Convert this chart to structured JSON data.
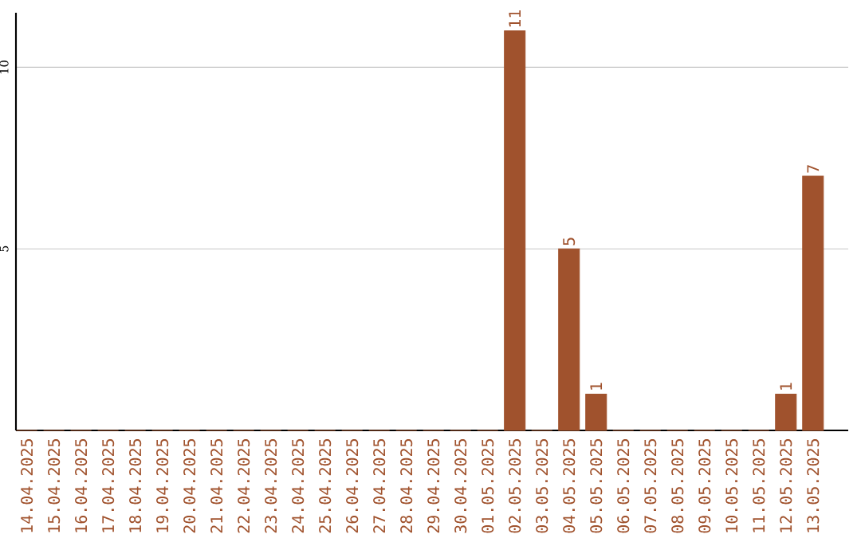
{
  "chart_data": {
    "type": "bar",
    "categories": [
      "14.04.2025",
      "15.04.2025",
      "16.04.2025",
      "17.04.2025",
      "18.04.2025",
      "19.04.2025",
      "20.04.2025",
      "21.04.2025",
      "22.04.2025",
      "23.04.2025",
      "24.04.2025",
      "25.04.2025",
      "26.04.2025",
      "27.04.2025",
      "28.04.2025",
      "29.04.2025",
      "30.04.2025",
      "01.05.2025",
      "02.05.2025",
      "03.05.2025",
      "04.05.2025",
      "05.05.2025",
      "06.05.2025",
      "07.05.2025",
      "08.05.2025",
      "09.05.2025",
      "10.05.2025",
      "11.05.2025",
      "12.05.2025",
      "13.05.2025"
    ],
    "values": [
      0,
      0,
      0,
      0,
      0,
      0,
      0,
      0,
      0,
      0,
      0,
      0,
      0,
      0,
      0,
      0,
      0,
      0,
      11,
      0,
      5,
      1,
      0,
      0,
      0,
      0,
      0,
      0,
      1,
      7
    ],
    "value_labels": [
      null,
      null,
      null,
      null,
      null,
      null,
      null,
      null,
      null,
      null,
      null,
      null,
      null,
      null,
      null,
      null,
      null,
      null,
      "11",
      null,
      "5",
      "1",
      null,
      null,
      null,
      null,
      null,
      null,
      "1",
      "7"
    ],
    "color": "#a0522d",
    "ylim": [
      0,
      11.5
    ],
    "yticks": [
      5,
      10
    ],
    "grid": "y"
  }
}
